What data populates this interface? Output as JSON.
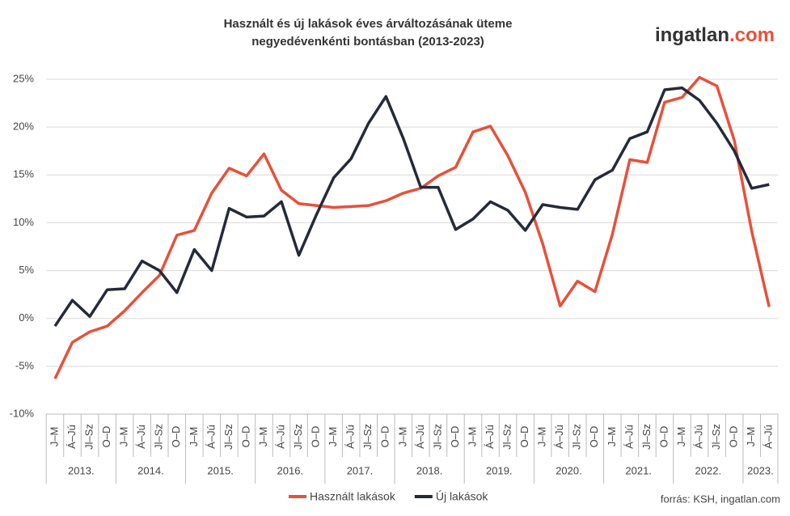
{
  "chart_data": {
    "type": "line",
    "title": [
      "Használt és új lakások éves árváltozásának üteme",
      "negyedévenkénti bontásban (2013-2023)"
    ],
    "logo": [
      "ingatlan",
      ".com"
    ],
    "source": "forrás: KSH, ingatlan.com",
    "categories": [
      "J–M",
      "Á–Jú",
      "Jl–Sz",
      "O–D",
      "J–M",
      "Á–Jú",
      "Jl–Sz",
      "O–D",
      "J–M",
      "Á–Jú",
      "Jl–Sz",
      "O–D",
      "J–M",
      "Á–Jú",
      "Jl–Sz",
      "O–D",
      "J–M",
      "Á–Jú",
      "Jl–Sz",
      "O–D",
      "J–M",
      "Á–Jú",
      "Jl–Sz",
      "O–D",
      "J–M",
      "Á–Jú",
      "Jl–Sz",
      "O–D",
      "J–M",
      "Á–Jú",
      "Jl–Sz",
      "O–D",
      "J–M",
      "Á–Jú",
      "Jl–Sz",
      "O–D",
      "J–M",
      "Á–Jú",
      "Jl–Sz",
      "O–D",
      "J–M",
      "Á–Jú"
    ],
    "years": [
      "2013.",
      "2014.",
      "2015.",
      "2016.",
      "2017.",
      "2018.",
      "2019.",
      "2020.",
      "2021.",
      "2022.",
      "2023."
    ],
    "series": [
      {
        "name": "Használt lakások",
        "color": "#e8503a",
        "values": [
          -6.3,
          -2.5,
          -1.4,
          -0.8,
          0.8,
          2.7,
          4.5,
          8.7,
          9.2,
          13.1,
          15.7,
          14.9,
          17.2,
          13.4,
          12.0,
          11.8,
          11.6,
          11.7,
          11.8,
          12.3,
          13.1,
          13.6,
          14.9,
          15.8,
          19.5,
          20.1,
          17.0,
          13.2,
          7.8,
          1.3,
          3.9,
          2.8,
          8.8,
          16.6,
          16.3,
          22.6,
          23.1,
          25.2,
          24.3,
          18.6,
          9.1,
          1.2
        ]
      },
      {
        "name": "Új lakások",
        "color": "#252a3a",
        "values": [
          -0.8,
          1.9,
          0.2,
          3.0,
          3.1,
          6.0,
          5.0,
          2.7,
          7.2,
          5.0,
          11.5,
          10.6,
          10.7,
          12.2,
          6.6,
          10.8,
          14.7,
          16.7,
          20.4,
          23.2,
          18.8,
          13.7,
          13.7,
          9.3,
          10.4,
          12.2,
          11.3,
          9.2,
          11.9,
          11.6,
          11.4,
          14.5,
          15.5,
          18.8,
          19.5,
          23.9,
          24.1,
          22.8,
          20.4,
          17.5,
          13.6,
          14.0
        ]
      }
    ],
    "ylim": [
      -10,
      25
    ],
    "yticks": [
      {
        "value": -10,
        "label": "-10%"
      },
      {
        "value": -5,
        "label": "-5%"
      },
      {
        "value": 0,
        "label": "0%"
      },
      {
        "value": 5,
        "label": "5%"
      },
      {
        "value": 10,
        "label": "10%"
      },
      {
        "value": 15,
        "label": "15%"
      },
      {
        "value": 20,
        "label": "20%"
      },
      {
        "value": 25,
        "label": "25%"
      }
    ],
    "grid": true
  }
}
